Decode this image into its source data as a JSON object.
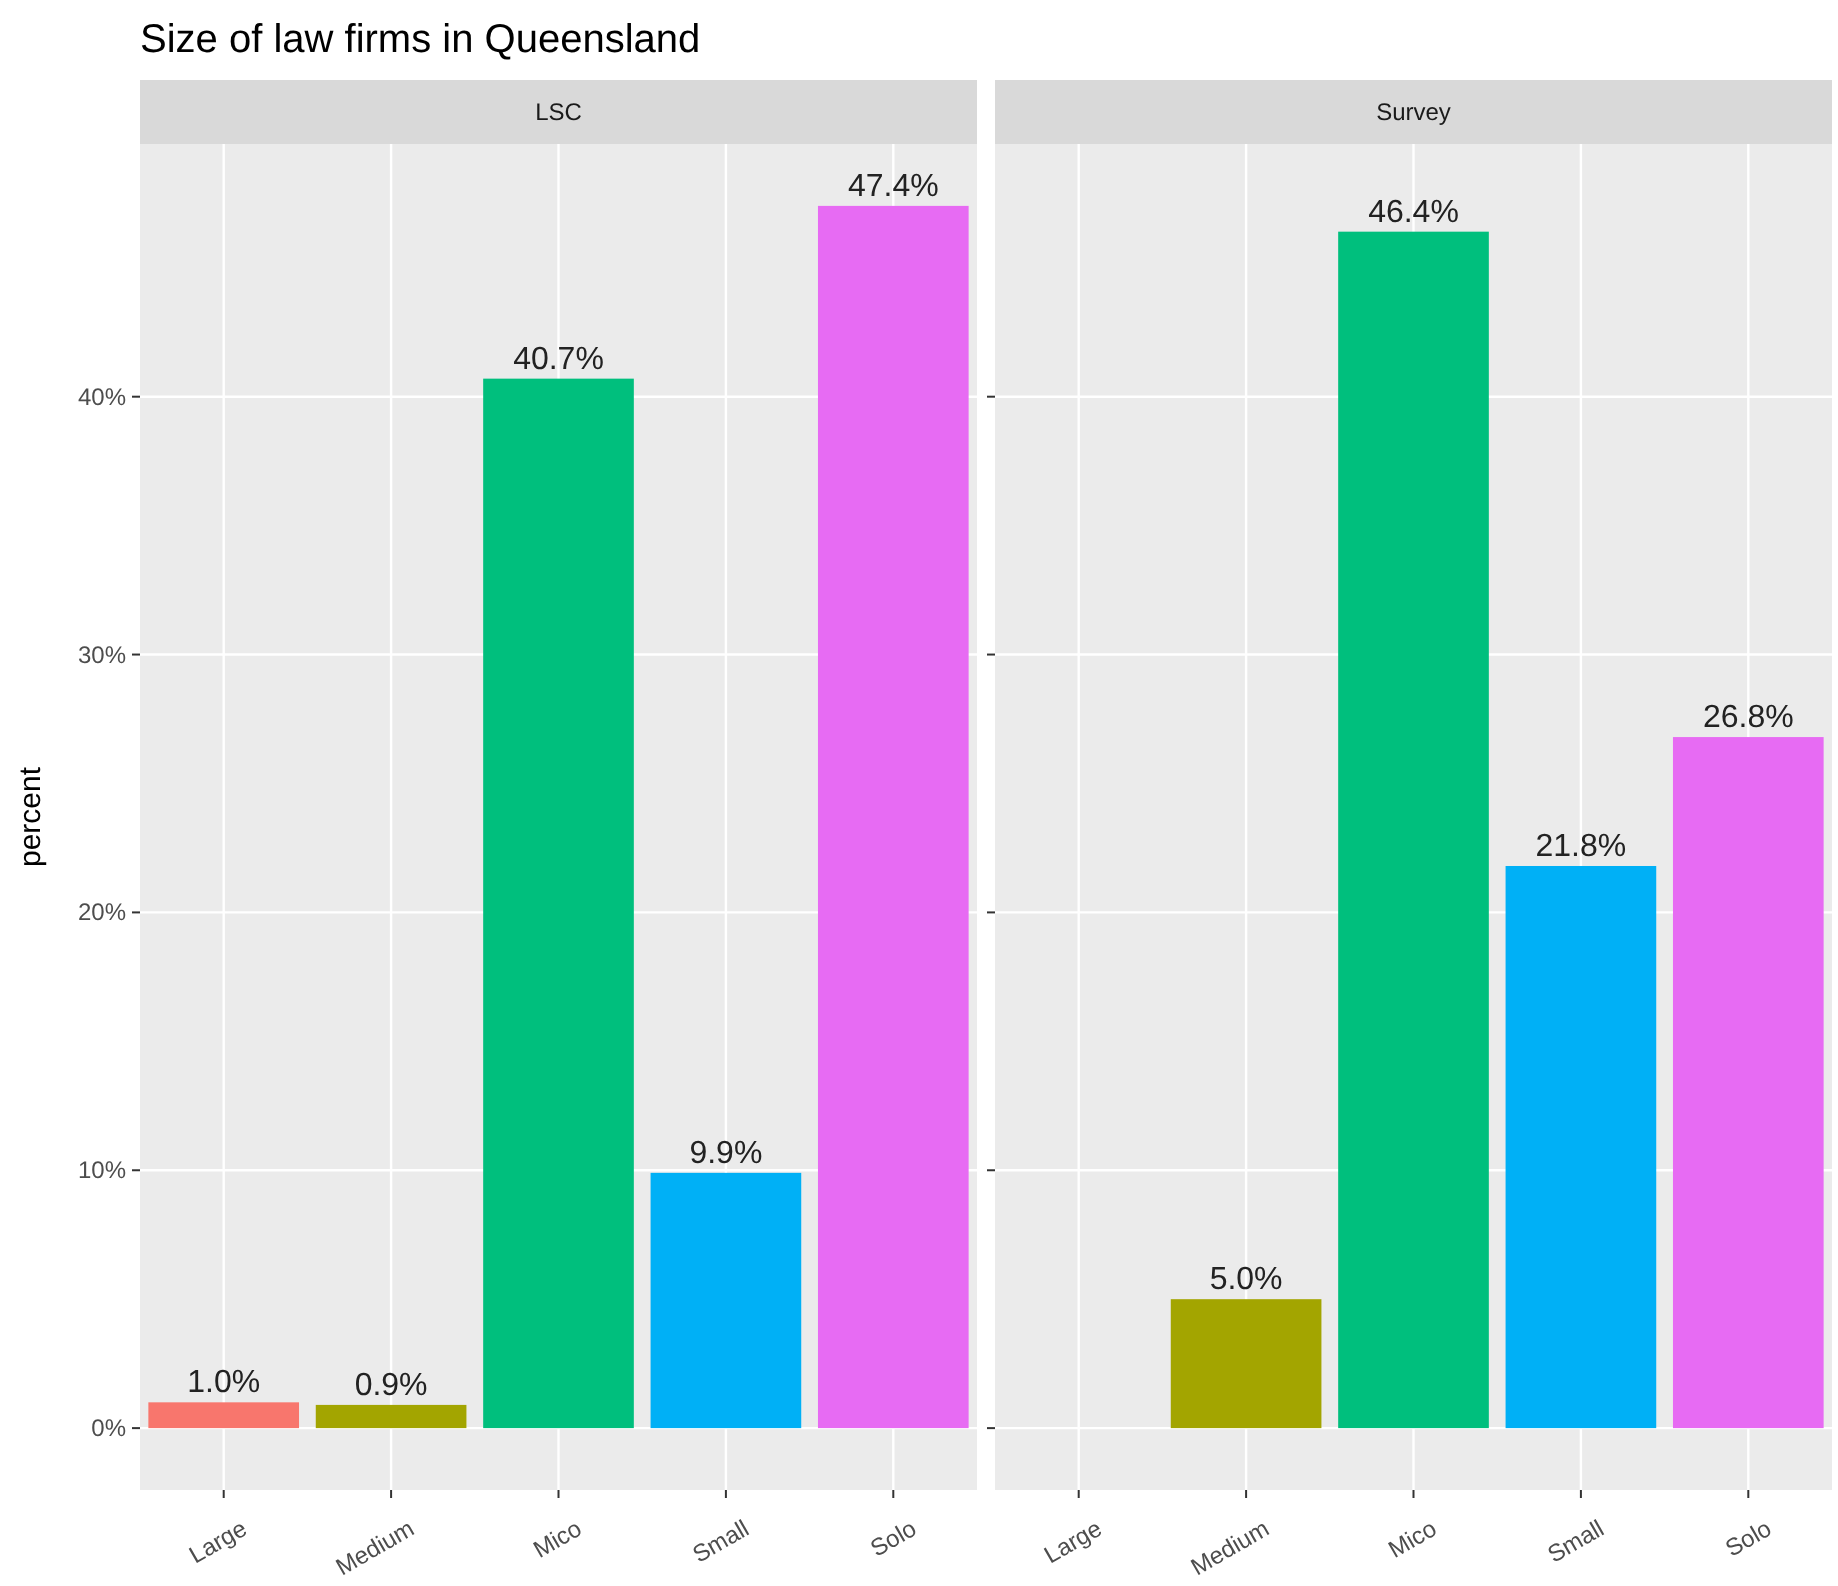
{
  "chart_data": [
    {
      "type": "bar",
      "title": "Size of law firms in Queensland",
      "subtitle": "LSC",
      "ylabel": "percent",
      "categories": [
        "Large",
        "Medium",
        "Mico",
        "Small",
        "Solo"
      ],
      "values": [
        1.0,
        0.9,
        40.7,
        9.9,
        47.4
      ],
      "colors": [
        "#f8766d",
        "#a3a500",
        "#00bf7d",
        "#00b0f6",
        "#e76bf3"
      ],
      "value_labels": [
        "1.0%",
        "0.9%",
        "40.7%",
        "9.9%",
        "47.4%"
      ],
      "ylim": [
        -2.4,
        49.8
      ],
      "yticks": [
        {
          "value": 0,
          "label": "0%"
        },
        {
          "value": 10,
          "label": "10%"
        },
        {
          "value": 20,
          "label": "20%"
        },
        {
          "value": 30,
          "label": "30%"
        },
        {
          "value": 40,
          "label": "40%"
        }
      ],
      "grid": true
    },
    {
      "type": "bar",
      "subtitle": "Survey",
      "categories": [
        "Large",
        "Medium",
        "Mico",
        "Small",
        "Solo"
      ],
      "values": [
        null,
        5.0,
        46.4,
        21.8,
        26.8
      ],
      "colors": [
        null,
        "#a3a500",
        "#00bf7d",
        "#00b0f6",
        "#e76bf3"
      ],
      "value_labels": [
        null,
        "5.0%",
        "46.4%",
        "21.8%",
        "26.8%"
      ],
      "ylim": [
        -2.4,
        49.8
      ],
      "yticks": [
        {
          "value": 0,
          "label": null
        },
        {
          "value": 10,
          "label": null
        },
        {
          "value": 20,
          "label": null
        },
        {
          "value": 30,
          "label": null
        },
        {
          "value": 40,
          "label": null
        }
      ],
      "grid": true,
      "tick_labels": "x"
    }
  ]
}
